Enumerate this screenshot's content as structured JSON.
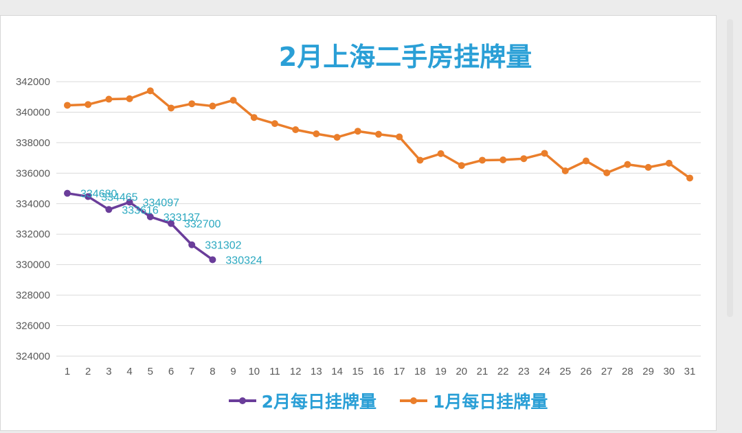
{
  "chart_data": {
    "type": "line",
    "title": "2月上海二手房挂牌量",
    "x": [
      1,
      2,
      3,
      4,
      5,
      6,
      7,
      8,
      9,
      10,
      11,
      12,
      13,
      14,
      15,
      16,
      17,
      18,
      19,
      20,
      21,
      22,
      23,
      24,
      25,
      26,
      27,
      28,
      29,
      30,
      31
    ],
    "ylim": [
      324000,
      342000
    ],
    "yticks": [
      324000,
      326000,
      328000,
      330000,
      332000,
      334000,
      336000,
      338000,
      340000,
      342000
    ],
    "grid": true,
    "legend_position": "bottom",
    "series": [
      {
        "name": "2月每日挂牌量",
        "color": "#6a3d9a",
        "x": [
          1,
          2,
          3,
          4,
          5,
          6,
          7,
          8
        ],
        "values": [
          334680,
          334465,
          333616,
          334097,
          333137,
          332700,
          331302,
          330324
        ],
        "labels": [
          "334680",
          "334465",
          "333616",
          "334097",
          "333137",
          "332700",
          "331302",
          "330324"
        ]
      },
      {
        "name": "1月每日挂牌量",
        "color": "#ea7e2b",
        "x": [
          1,
          2,
          3,
          4,
          5,
          6,
          7,
          8,
          9,
          10,
          11,
          12,
          13,
          14,
          15,
          16,
          17,
          18,
          19,
          20,
          21,
          22,
          23,
          24,
          25,
          26,
          27,
          28,
          29,
          30,
          31
        ],
        "values": [
          340450,
          340500,
          340850,
          340880,
          341400,
          340270,
          340550,
          340400,
          340780,
          339650,
          339250,
          338850,
          338580,
          338350,
          338750,
          338550,
          338380,
          336850,
          337280,
          336500,
          336850,
          336870,
          336950,
          337300,
          336150,
          336800,
          336020,
          336570,
          336380,
          336650,
          335680
        ]
      }
    ],
    "label_color": "#2aa8c0"
  }
}
